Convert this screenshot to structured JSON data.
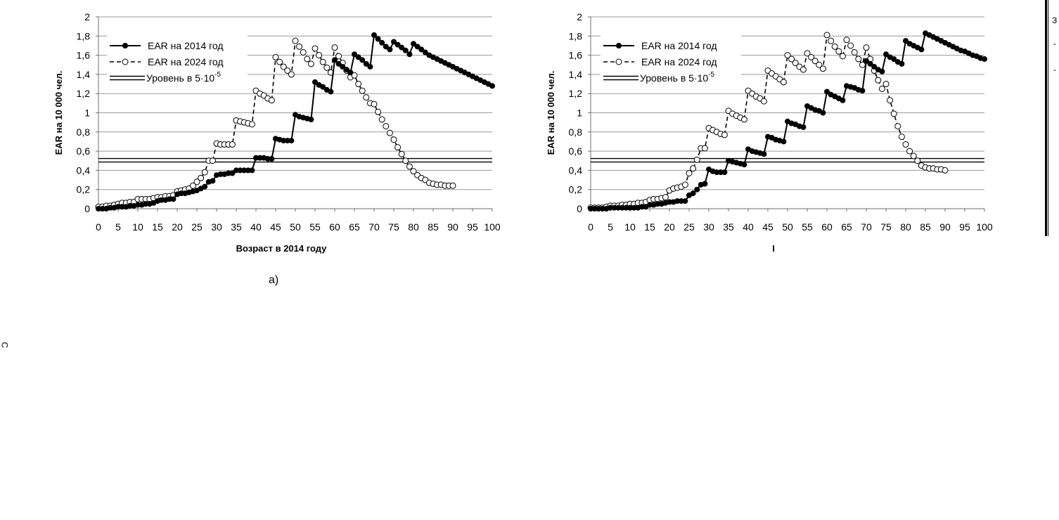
{
  "figure": {
    "caption_a": "а)",
    "edge_glyph": "С",
    "right_glyphs": [
      "З",
      "-",
      "-"
    ]
  },
  "chart_data": [
    {
      "type": "line",
      "title": "",
      "xlabel": "Возраст в 2014 году",
      "ylabel": "EAR на 10 000 чел.",
      "xlim": [
        0,
        100
      ],
      "ylim": [
        0,
        2
      ],
      "x_ticks": [
        "0",
        "5",
        "10",
        "15",
        "20",
        "25",
        "30",
        "35",
        "40",
        "45",
        "50",
        "55",
        "60",
        "65",
        "70",
        "75",
        "80",
        "85",
        "90",
        "95",
        "100"
      ],
      "y_ticks": [
        "0",
        "0,2",
        "0,4",
        "0,6",
        "0,8",
        "1",
        "1,2",
        "1,4",
        "1,6",
        "1,8",
        "2"
      ],
      "grid": true,
      "legend_position": "top-left",
      "legend": [
        "EAR на 2014 год",
        "EAR на 2024 год",
        "Уровень в 5·10"
      ],
      "legend_superscript": "-5",
      "series": [
        {
          "name": "EAR на 2014 год",
          "style": "solid-filled",
          "x": [
            0,
            1,
            2,
            3,
            4,
            5,
            6,
            7,
            8,
            9,
            10,
            11,
            12,
            13,
            14,
            15,
            16,
            17,
            18,
            19,
            20,
            21,
            22,
            23,
            24,
            25,
            26,
            27,
            28,
            29,
            30,
            31,
            32,
            33,
            34,
            35,
            36,
            37,
            38,
            39,
            40,
            41,
            42,
            43,
            44,
            45,
            46,
            47,
            48,
            49,
            50,
            51,
            52,
            53,
            54,
            55,
            56,
            57,
            58,
            59,
            60,
            61,
            62,
            63,
            64,
            65,
            66,
            67,
            68,
            69,
            70,
            71,
            72,
            73,
            74,
            75,
            76,
            77,
            78,
            79,
            80,
            81,
            82,
            83,
            84,
            85,
            86,
            87,
            88,
            89,
            90,
            91,
            92,
            93,
            94,
            95,
            96,
            97,
            98,
            99,
            100
          ],
          "y": [
            0,
            0,
            0,
            0.01,
            0.01,
            0.02,
            0.02,
            0.02,
            0.03,
            0.03,
            0.04,
            0.04,
            0.05,
            0.05,
            0.06,
            0.08,
            0.09,
            0.09,
            0.1,
            0.1,
            0.15,
            0.16,
            0.16,
            0.17,
            0.18,
            0.19,
            0.21,
            0.23,
            0.28,
            0.29,
            0.35,
            0.36,
            0.36,
            0.37,
            0.37,
            0.4,
            0.4,
            0.4,
            0.4,
            0.4,
            0.53,
            0.53,
            0.53,
            0.52,
            0.52,
            0.73,
            0.72,
            0.71,
            0.71,
            0.71,
            0.98,
            0.96,
            0.95,
            0.94,
            0.93,
            1.32,
            1.29,
            1.27,
            1.24,
            1.22,
            1.55,
            1.51,
            1.48,
            1.45,
            1.42,
            1.61,
            1.58,
            1.55,
            1.51,
            1.48,
            1.81,
            1.77,
            1.73,
            1.69,
            1.66,
            1.74,
            1.71,
            1.68,
            1.65,
            1.61,
            1.72,
            1.69,
            1.66,
            1.63,
            1.6,
            1.58,
            1.56,
            1.54,
            1.52,
            1.5,
            1.48,
            1.46,
            1.44,
            1.42,
            1.4,
            1.38,
            1.36,
            1.34,
            1.32,
            1.3,
            1.28
          ]
        },
        {
          "name": "EAR на 2024 год",
          "style": "dashed-open",
          "x": [
            0,
            1,
            2,
            3,
            4,
            5,
            6,
            7,
            8,
            9,
            10,
            11,
            12,
            13,
            14,
            15,
            16,
            17,
            18,
            19,
            20,
            21,
            22,
            23,
            24,
            25,
            26,
            27,
            28,
            29,
            30,
            31,
            32,
            33,
            34,
            35,
            36,
            37,
            38,
            39,
            40,
            41,
            42,
            43,
            44,
            45,
            46,
            47,
            48,
            49,
            50,
            51,
            52,
            53,
            54,
            55,
            56,
            57,
            58,
            59,
            60,
            61,
            62,
            63,
            64,
            65,
            66,
            67,
            68,
            69,
            70,
            71,
            72,
            73,
            74,
            75,
            76,
            77,
            78,
            79,
            80,
            81,
            82,
            83,
            84,
            85,
            86,
            87,
            88,
            89,
            90
          ],
          "y": [
            0.02,
            0.02,
            0.03,
            0.03,
            0.04,
            0.05,
            0.06,
            0.06,
            0.07,
            0.07,
            0.1,
            0.1,
            0.1,
            0.1,
            0.11,
            0.12,
            0.12,
            0.13,
            0.13,
            0.14,
            0.18,
            0.19,
            0.2,
            0.21,
            0.24,
            0.28,
            0.32,
            0.38,
            0.5,
            0.5,
            0.68,
            0.67,
            0.67,
            0.67,
            0.67,
            0.92,
            0.91,
            0.9,
            0.89,
            0.88,
            1.23,
            1.2,
            1.18,
            1.15,
            1.13,
            1.58,
            1.53,
            1.48,
            1.44,
            1.4,
            1.75,
            1.69,
            1.63,
            1.56,
            1.51,
            1.67,
            1.6,
            1.53,
            1.47,
            1.42,
            1.68,
            1.59,
            1.52,
            1.44,
            1.37,
            1.39,
            1.3,
            1.23,
            1.16,
            1.1,
            1.09,
            1.01,
            0.93,
            0.86,
            0.79,
            0.72,
            0.64,
            0.57,
            0.5,
            0.44,
            0.39,
            0.35,
            0.32,
            0.3,
            0.27,
            0.26,
            0.25,
            0.25,
            0.24,
            0.24,
            0.24
          ]
        },
        {
          "name": "Уровень в 5·10",
          "style": "double-line",
          "y_const": 0.505
        }
      ]
    },
    {
      "type": "line",
      "title": "",
      "xlabel": "I",
      "ylabel": "EAR на 10 000 чел.",
      "xlim": [
        0,
        100
      ],
      "ylim": [
        0,
        2
      ],
      "x_ticks": [
        "0",
        "5",
        "10",
        "15",
        "20",
        "25",
        "30",
        "35",
        "40",
        "45",
        "50",
        "55",
        "60",
        "65",
        "70",
        "75",
        "80",
        "85",
        "90",
        "95",
        "100"
      ],
      "y_ticks": [
        "0",
        "0,2",
        "0,4",
        "0,6",
        "0,8",
        "1",
        "1,2",
        "1,4",
        "1,6",
        "1,8",
        "2"
      ],
      "grid": true,
      "legend_position": "top-left",
      "legend": [
        "EAR на 2014 год",
        "EAR на 2024 год",
        "Уровень в 5·10"
      ],
      "legend_superscript": "-5",
      "series": [
        {
          "name": "EAR на 2014 год",
          "style": "solid-filled",
          "x": [
            0,
            1,
            2,
            3,
            4,
            5,
            6,
            7,
            8,
            9,
            10,
            11,
            12,
            13,
            14,
            15,
            16,
            17,
            18,
            19,
            20,
            21,
            22,
            23,
            24,
            25,
            26,
            27,
            28,
            29,
            30,
            31,
            32,
            33,
            34,
            35,
            36,
            37,
            38,
            39,
            40,
            41,
            42,
            43,
            44,
            45,
            46,
            47,
            48,
            49,
            50,
            51,
            52,
            53,
            54,
            55,
            56,
            57,
            58,
            59,
            60,
            61,
            62,
            63,
            64,
            65,
            66,
            67,
            68,
            69,
            70,
            71,
            72,
            73,
            74,
            75,
            76,
            77,
            78,
            79,
            80,
            81,
            82,
            83,
            84,
            85,
            86,
            87,
            88,
            89,
            90,
            91,
            92,
            93,
            94,
            95,
            96,
            97,
            98,
            99,
            100
          ],
          "y": [
            0,
            0,
            0,
            0,
            0,
            0.01,
            0.01,
            0.01,
            0.01,
            0.01,
            0.01,
            0.01,
            0.01,
            0.02,
            0.02,
            0.04,
            0.04,
            0.05,
            0.05,
            0.06,
            0.07,
            0.07,
            0.08,
            0.08,
            0.08,
            0.14,
            0.16,
            0.2,
            0.25,
            0.26,
            0.41,
            0.39,
            0.38,
            0.38,
            0.38,
            0.5,
            0.49,
            0.48,
            0.47,
            0.46,
            0.62,
            0.6,
            0.59,
            0.58,
            0.57,
            0.75,
            0.74,
            0.72,
            0.71,
            0.7,
            0.91,
            0.89,
            0.88,
            0.86,
            0.85,
            1.07,
            1.05,
            1.03,
            1.02,
            1.0,
            1.22,
            1.19,
            1.17,
            1.15,
            1.13,
            1.28,
            1.27,
            1.26,
            1.24,
            1.23,
            1.54,
            1.51,
            1.48,
            1.45,
            1.43,
            1.61,
            1.58,
            1.56,
            1.53,
            1.51,
            1.75,
            1.72,
            1.7,
            1.68,
            1.66,
            1.83,
            1.81,
            1.79,
            1.77,
            1.75,
            1.73,
            1.71,
            1.69,
            1.67,
            1.65,
            1.64,
            1.62,
            1.6,
            1.59,
            1.57,
            1.56
          ]
        },
        {
          "name": "EAR на 2024 год",
          "style": "dashed-open",
          "x": [
            0,
            1,
            2,
            3,
            4,
            5,
            6,
            7,
            8,
            9,
            10,
            11,
            12,
            13,
            14,
            15,
            16,
            17,
            18,
            19,
            20,
            21,
            22,
            23,
            24,
            25,
            26,
            27,
            28,
            29,
            30,
            31,
            32,
            33,
            34,
            35,
            36,
            37,
            38,
            39,
            40,
            41,
            42,
            43,
            44,
            45,
            46,
            47,
            48,
            49,
            50,
            51,
            52,
            53,
            54,
            55,
            56,
            57,
            58,
            59,
            60,
            61,
            62,
            63,
            64,
            65,
            66,
            67,
            68,
            69,
            70,
            71,
            72,
            73,
            74,
            75,
            76,
            77,
            78,
            79,
            80,
            81,
            82,
            83,
            84,
            85,
            86,
            87,
            88,
            89,
            90
          ],
          "y": [
            0.01,
            0.01,
            0.01,
            0.01,
            0.02,
            0.03,
            0.03,
            0.03,
            0.04,
            0.04,
            0.05,
            0.05,
            0.06,
            0.06,
            0.07,
            0.09,
            0.1,
            0.1,
            0.11,
            0.12,
            0.19,
            0.21,
            0.22,
            0.23,
            0.25,
            0.37,
            0.42,
            0.51,
            0.63,
            0.63,
            0.84,
            0.82,
            0.8,
            0.78,
            0.77,
            1.02,
            0.99,
            0.97,
            0.95,
            0.93,
            1.23,
            1.2,
            1.17,
            1.15,
            1.12,
            1.44,
            1.41,
            1.38,
            1.35,
            1.32,
            1.6,
            1.56,
            1.52,
            1.48,
            1.45,
            1.62,
            1.58,
            1.54,
            1.5,
            1.46,
            1.81,
            1.75,
            1.69,
            1.64,
            1.59,
            1.76,
            1.7,
            1.63,
            1.56,
            1.5,
            1.68,
            1.56,
            1.44,
            1.34,
            1.25,
            1.3,
            1.13,
            0.99,
            0.86,
            0.75,
            0.67,
            0.6,
            0.55,
            0.5,
            0.45,
            0.43,
            0.42,
            0.42,
            0.41,
            0.41,
            0.4
          ]
        },
        {
          "name": "Уровень в 5·10",
          "style": "double-line",
          "y_const": 0.505
        }
      ]
    }
  ]
}
